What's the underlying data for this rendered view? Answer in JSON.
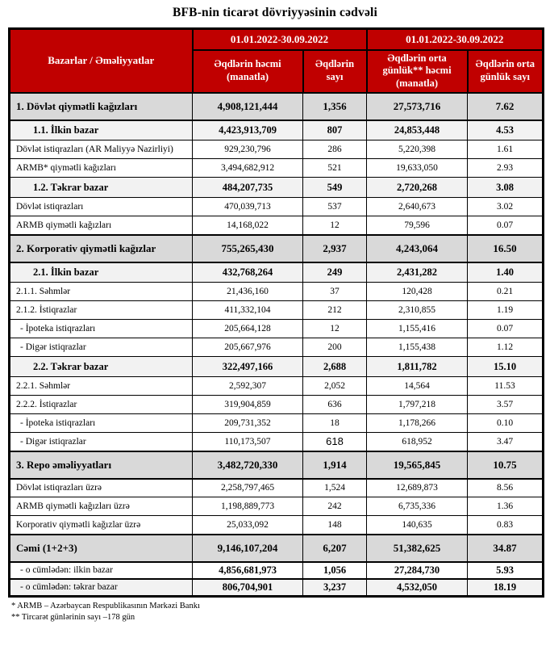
{
  "title": "BFB-nin ticarət dövriyyəsinin cədvəli",
  "table": {
    "corner_header": "Bazarlar / Əməliyyatlar",
    "period_headers": [
      "01.01.2022-30.09.2022",
      "01.01.2022-30.09.2022"
    ],
    "column_headers": [
      "Əqdlərin həcmi (manatla)",
      "Əqdlərin sayı",
      "Əqdlərin orta günlük** həcmi (manatla)",
      "Əqdlərin orta günlük sayı"
    ],
    "rows": [
      {
        "label": "1. Dövlət qiymətli kağızları",
        "style": "section",
        "values": [
          "4,908,121,444",
          "1,356",
          "27,573,716",
          "7.62"
        ]
      },
      {
        "label": "1.1. İlkin bazar",
        "style": "subsection",
        "values": [
          "4,423,913,709",
          "807",
          "24,853,448",
          "4.53"
        ]
      },
      {
        "label": "Dövlət istiqrazları (AR Maliyyə Nazirliyi)",
        "style": "detail",
        "values": [
          "929,230,796",
          "286",
          "5,220,398",
          "1.61"
        ]
      },
      {
        "label": "ARMB* qiymətli kağızları",
        "style": "detail",
        "values": [
          "3,494,682,912",
          "521",
          "19,633,050",
          "2.93"
        ]
      },
      {
        "label": "1.2. Təkrar bazar",
        "style": "subsection",
        "values": [
          "484,207,735",
          "549",
          "2,720,268",
          "3.08"
        ]
      },
      {
        "label": "Dövlət istiqrazları",
        "style": "detail",
        "values": [
          "470,039,713",
          "537",
          "2,640,673",
          "3.02"
        ]
      },
      {
        "label": "ARMB qiymətli kağızları",
        "style": "detail",
        "values": [
          "14,168,022",
          "12",
          "79,596",
          "0.07"
        ]
      },
      {
        "label": "2. Korporativ qiymətli kağızlar",
        "style": "section",
        "values": [
          "755,265,430",
          "2,937",
          "4,243,064",
          "16.50"
        ]
      },
      {
        "label": "2.1. İlkin bazar",
        "style": "subsection",
        "values": [
          "432,768,264",
          "249",
          "2,431,282",
          "1.40"
        ]
      },
      {
        "label": "2.1.1. Səhmlər",
        "style": "detail",
        "values": [
          "21,436,160",
          "37",
          "120,428",
          "0.21"
        ]
      },
      {
        "label": "2.1.2. İstiqrazlar",
        "style": "detail",
        "values": [
          "411,332,104",
          "212",
          "2,310,855",
          "1.19"
        ]
      },
      {
        "label": "- İpoteka istiqrazları",
        "style": "dash",
        "values": [
          "205,664,128",
          "12",
          "1,155,416",
          "0.07"
        ]
      },
      {
        "label": "- Digər istiqrazlar",
        "style": "dash",
        "values": [
          "205,667,976",
          "200",
          "1,155,438",
          "1.12"
        ]
      },
      {
        "label": "2.2. Təkrar bazar",
        "style": "subsection",
        "values": [
          "322,497,166",
          "2,688",
          "1,811,782",
          "15.10"
        ]
      },
      {
        "label": "2.2.1. Səhmlər",
        "style": "detail",
        "values": [
          "2,592,307",
          "2,052",
          "14,564",
          "11.53"
        ]
      },
      {
        "label": "2.2.2. İstiqrazlar",
        "style": "detail",
        "values": [
          "319,904,859",
          "636",
          "1,797,218",
          "3.57"
        ]
      },
      {
        "label": "- İpoteka istiqrazları",
        "style": "dash",
        "values": [
          "209,731,352",
          "18",
          "1,178,266",
          "0.10"
        ]
      },
      {
        "label": "- Digər istiqrazlar",
        "style": "dash",
        "values": [
          "110,173,507",
          "618",
          "618,952",
          "3.47"
        ],
        "count_font": "sans"
      },
      {
        "label": "3. Repo əməliyyatları",
        "style": "section",
        "values": [
          "3,482,720,330",
          "1,914",
          "19,565,845",
          "10.75"
        ]
      },
      {
        "label": "Dövlət istiqrazları üzrə",
        "style": "detail",
        "values": [
          "2,258,797,465",
          "1,524",
          "12,689,873",
          "8.56"
        ]
      },
      {
        "label": "ARMB qiymətli kağızları üzrə",
        "style": "detail",
        "values": [
          "1,198,889,773",
          "242",
          "6,735,336",
          "1.36"
        ]
      },
      {
        "label": "Korporativ qiymətli kağızlar üzrə",
        "style": "detail",
        "values": [
          "25,033,092",
          "148",
          "140,635",
          "0.83"
        ]
      },
      {
        "label": "Cəmi (1+2+3)",
        "style": "total",
        "values": [
          "9,146,107,204",
          "6,207",
          "51,382,625",
          "34.87"
        ]
      },
      {
        "label": "- o cümlədən: ilkin bazar",
        "style": "subtotal",
        "values": [
          "4,856,681,973",
          "1,056",
          "27,284,730",
          "5.93"
        ]
      },
      {
        "label": "- o cümlədən: təkrar bazar",
        "style": "subtotal shaded",
        "values": [
          "806,704,901",
          "3,237",
          "4,532,050",
          "18.19"
        ]
      }
    ]
  },
  "footnotes": [
    "* ARMB – Azərbaycan Respublikasının Mərkəzi Bankı",
    "** Tircarət günlərinin sayı –178 gün"
  ],
  "colors": {
    "header_red": "#C00000",
    "section_gray": "#D9D9D9",
    "subsection_gray": "#F2F2F2",
    "border_black": "#000000"
  }
}
